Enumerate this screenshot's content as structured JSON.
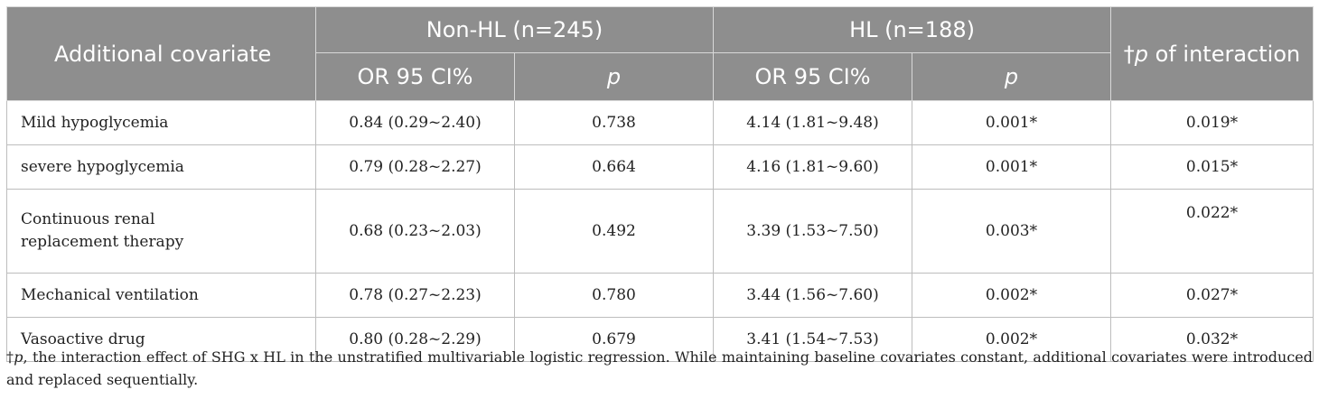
{
  "table": {
    "header": {
      "row_label": "Additional covariate",
      "groups": [
        {
          "label": "Non-HL (n=245)"
        },
        {
          "label": "HL (n=188)"
        }
      ],
      "interaction_dagger": "†",
      "interaction_p": "p",
      "interaction_rest": " of interaction",
      "sub": {
        "or_ci": "OR 95 CI%",
        "p": "p"
      }
    },
    "rows": [
      {
        "label": "Mild hypoglycemia",
        "nonhl_or": "0.84 (0.29~2.40)",
        "nonhl_p": "0.738",
        "hl_or": "4.14 (1.81~9.48)",
        "hl_p": "0.001*",
        "interaction": "0.019*"
      },
      {
        "label": "severe hypoglycemia",
        "nonhl_or": "0.79 (0.28~2.27)",
        "nonhl_p": "0.664",
        "hl_or": "4.16 (1.81~9.60)",
        "hl_p": "0.001*",
        "interaction": "0.015*"
      },
      {
        "label_line1": "Continuous renal",
        "label_line2": "replacement therapy",
        "nonhl_or": "0.68 (0.23~2.03)",
        "nonhl_p": "0.492",
        "hl_or": "3.39 (1.53~7.50)",
        "hl_p": "0.003*",
        "interaction": "0.022*"
      },
      {
        "label": "Mechanical ventilation",
        "nonhl_or": "0.78 (0.27~2.23)",
        "nonhl_p": "0.780",
        "hl_or": "3.44 (1.56~7.60)",
        "hl_p": "0.002*",
        "interaction": "0.027*"
      },
      {
        "label": "Vasoactive drug",
        "nonhl_or": "0.80 (0.28~2.29)",
        "nonhl_p": "0.679",
        "hl_or": "3.41 (1.54~7.53)",
        "hl_p": "0.002*",
        "interaction": "0.032*"
      }
    ]
  },
  "footnote": {
    "dagger": "†",
    "p": "p",
    "text": ", the interaction effect of SHG x HL in the unstratified multivariable logistic regression. While maintaining baseline covariates constant, additional covariates were introduced and replaced sequentially."
  },
  "colors": {
    "header_bg": "#8e8e8e",
    "header_text": "#ffffff",
    "grid": "#bdbdbd"
  }
}
